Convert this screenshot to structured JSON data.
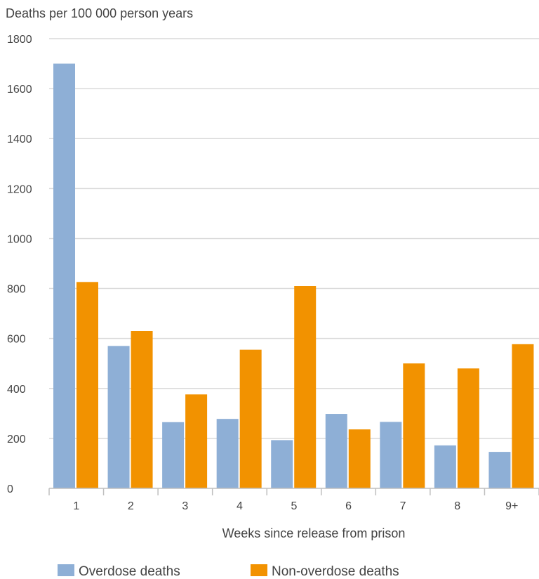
{
  "chart_data": {
    "type": "bar",
    "ylabel": "Deaths per 100 000 person years",
    "xlabel": "Weeks since release from prison",
    "categories": [
      "1",
      "2",
      "3",
      "4",
      "5",
      "6",
      "7",
      "8",
      "9+"
    ],
    "series": [
      {
        "name": "Overdose deaths",
        "color": "#8eafd6",
        "values": [
          1700,
          570,
          265,
          278,
          193,
          298,
          266,
          172,
          146
        ]
      },
      {
        "name": "Non-overdose deaths",
        "color": "#f29200",
        "values": [
          826,
          630,
          376,
          555,
          810,
          236,
          500,
          480,
          577
        ]
      }
    ],
    "ylim": [
      0,
      1800
    ],
    "yticks": [
      "0",
      "200",
      "400",
      "600",
      "800",
      "1000",
      "1200",
      "1400",
      "1600",
      "1800"
    ],
    "grid": true,
    "legend": "bottom"
  }
}
